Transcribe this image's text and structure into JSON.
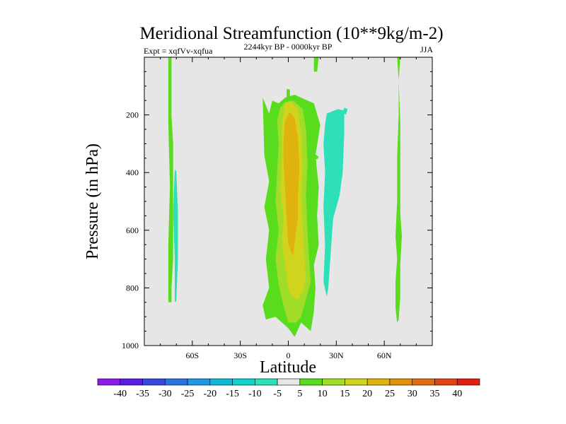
{
  "chart_data": {
    "type": "contour",
    "title": "Meridional Streamfunction (10**9kg/m-2)",
    "left_label": "Expt = xqfVv-xqfua",
    "center_label": "2244kyr BP - 0000kyr BP",
    "right_label": "JJA",
    "xlabel": "Latitude",
    "ylabel": "Pressure (in hPa)",
    "xlim": [
      -90,
      90
    ],
    "ylim": [
      1000,
      0
    ],
    "x_ticks": [
      {
        "value": -60,
        "label": "60S"
      },
      {
        "value": -30,
        "label": "30S"
      },
      {
        "value": 0,
        "label": "0"
      },
      {
        "value": 30,
        "label": "30N"
      },
      {
        "value": 60,
        "label": "60N"
      }
    ],
    "y_ticks": [
      {
        "value": 200,
        "label": "200"
      },
      {
        "value": 400,
        "label": "400"
      },
      {
        "value": 600,
        "label": "600"
      },
      {
        "value": 800,
        "label": "800"
      },
      {
        "value": 1000,
        "label": "1000"
      }
    ],
    "background_value_range": "-5 to 5",
    "levels": [
      "-40",
      "-35",
      "-30",
      "-25",
      "-20",
      "-15",
      "-10",
      "-5",
      "5",
      "10",
      "15",
      "20",
      "25",
      "30",
      "35",
      "40"
    ],
    "colors": [
      "#8a1ce6",
      "#5a1ce0",
      "#3848dc",
      "#2a74e0",
      "#1c98e4",
      "#10bad6",
      "#10d4cc",
      "#2ee0b8",
      "#e6e6e6",
      "#5adc1e",
      "#a0dc28",
      "#d0d41c",
      "#e0b20e",
      "#e2900c",
      "#e26c10",
      "#e24410",
      "#e01e12"
    ],
    "regions": [
      {
        "level": "5 to 10",
        "pts": [
          [
            -16,
            140
          ],
          [
            -12,
            195
          ],
          [
            -10,
            150
          ],
          [
            -6,
            160
          ],
          [
            -2,
            140
          ],
          [
            4,
            130
          ],
          [
            10,
            145
          ],
          [
            16,
            160
          ],
          [
            20,
            235
          ],
          [
            17,
            340
          ],
          [
            19,
            450
          ],
          [
            18,
            550
          ],
          [
            19,
            650
          ],
          [
            16,
            720
          ],
          [
            17,
            800
          ],
          [
            16,
            880
          ],
          [
            14,
            950
          ],
          [
            8,
            920
          ],
          [
            4,
            970
          ],
          [
            0,
            940
          ],
          [
            -4,
            920
          ],
          [
            -8,
            900
          ],
          [
            -14,
            910
          ],
          [
            -16,
            860
          ],
          [
            -12,
            800
          ],
          [
            -14,
            700
          ],
          [
            -12,
            600
          ],
          [
            -15,
            520
          ],
          [
            -12,
            430
          ],
          [
            -15,
            340
          ]
        ]
      },
      {
        "level": "5 to 10",
        "pts": [
          [
            15,
            330
          ],
          [
            19,
            345
          ],
          [
            18,
            355
          ],
          [
            15,
            345
          ]
        ]
      },
      {
        "level": "5 to 10",
        "pts": [
          [
            -1,
            110
          ],
          [
            1,
            112
          ],
          [
            1,
            140
          ],
          [
            -1,
            140
          ]
        ]
      },
      {
        "level": "10 to 15",
        "pts": [
          [
            -5,
            175
          ],
          [
            -2,
            155
          ],
          [
            3,
            150
          ],
          [
            9,
            180
          ],
          [
            11,
            250
          ],
          [
            12,
            370
          ],
          [
            11,
            480
          ],
          [
            12,
            600
          ],
          [
            13,
            700
          ],
          [
            14,
            780
          ],
          [
            12,
            820
          ],
          [
            10,
            860
          ],
          [
            8,
            900
          ],
          [
            5,
            920
          ],
          [
            0,
            920
          ],
          [
            -3,
            860
          ],
          [
            -6,
            790
          ],
          [
            -8,
            700
          ],
          [
            -6,
            600
          ],
          [
            -8,
            500
          ],
          [
            -7,
            400
          ],
          [
            -6,
            300
          ],
          [
            -7,
            220
          ]
        ]
      },
      {
        "level": "15 to 20",
        "pts": [
          [
            -4,
            230
          ],
          [
            -2,
            160
          ],
          [
            2,
            155
          ],
          [
            6,
            180
          ],
          [
            8,
            270
          ],
          [
            9,
            380
          ],
          [
            8,
            480
          ],
          [
            9,
            580
          ],
          [
            10,
            680
          ],
          [
            11,
            770
          ],
          [
            9,
            810
          ],
          [
            6,
            840
          ],
          [
            2,
            830
          ],
          [
            0,
            800
          ],
          [
            -2,
            720
          ],
          [
            -4,
            640
          ],
          [
            -3,
            560
          ],
          [
            -5,
            460
          ],
          [
            -4,
            350
          ]
        ]
      },
      {
        "level": "20 to 25",
        "pts": [
          [
            -2,
            220
          ],
          [
            1,
            190
          ],
          [
            4,
            210
          ],
          [
            6,
            280
          ],
          [
            7,
            380
          ],
          [
            6,
            480
          ],
          [
            6,
            560
          ],
          [
            4,
            640
          ],
          [
            3,
            690
          ],
          [
            0,
            650
          ],
          [
            -1,
            560
          ],
          [
            -2,
            460
          ],
          [
            -3,
            360
          ],
          [
            -3,
            290
          ]
        ]
      },
      {
        "level": "-10 to -5",
        "pts": [
          [
            24,
            195
          ],
          [
            31,
            180
          ],
          [
            35,
            185
          ],
          [
            35,
            260
          ],
          [
            34,
            400
          ],
          [
            32,
            480
          ],
          [
            31,
            500
          ],
          [
            28,
            560
          ],
          [
            26,
            720
          ],
          [
            25,
            800
          ],
          [
            24,
            830
          ],
          [
            22,
            780
          ],
          [
            23,
            650
          ],
          [
            22,
            520
          ],
          [
            23,
            400
          ],
          [
            22,
            300
          ],
          [
            23,
            235
          ]
        ]
      },
      {
        "level": "-10 to -5",
        "pts": [
          [
            35,
            175
          ],
          [
            37,
            180
          ],
          [
            36,
            200
          ],
          [
            34,
            190
          ]
        ]
      },
      {
        "level": "-10 to -5",
        "pts": [
          [
            -71,
            390
          ],
          [
            -70,
            395
          ],
          [
            -69,
            540
          ],
          [
            -69,
            700
          ],
          [
            -70,
            845
          ],
          [
            -71,
            850
          ],
          [
            -71,
            700
          ],
          [
            -72,
            540
          ]
        ]
      },
      {
        "level": "5 to 10",
        "pts": [
          [
            -75,
            0
          ],
          [
            -73,
            0
          ],
          [
            -73,
            200
          ],
          [
            -72,
            300
          ],
          [
            -72,
            500
          ],
          [
            -72,
            700
          ],
          [
            -73,
            800
          ],
          [
            -73,
            850
          ],
          [
            -75,
            850
          ],
          [
            -75,
            650
          ],
          [
            -74,
            450
          ],
          [
            -75,
            230
          ]
        ]
      },
      {
        "level": "5 to 10",
        "pts": [
          [
            16,
            0
          ],
          [
            19,
            0
          ],
          [
            18,
            50
          ],
          [
            16,
            50
          ]
        ]
      },
      {
        "level": "5 to 10",
        "pts": [
          [
            68,
            0
          ],
          [
            70,
            0
          ],
          [
            69,
            80
          ],
          [
            70,
            230
          ],
          [
            70,
            400
          ],
          [
            70,
            540
          ],
          [
            71,
            620
          ],
          [
            70,
            720
          ],
          [
            70,
            830
          ],
          [
            69,
            910
          ],
          [
            68,
            920
          ],
          [
            67,
            870
          ],
          [
            67,
            780
          ],
          [
            68,
            700
          ],
          [
            67,
            620
          ],
          [
            68,
            500
          ],
          [
            68,
            350
          ],
          [
            69,
            200
          ],
          [
            69,
            80
          ]
        ]
      }
    ]
  }
}
